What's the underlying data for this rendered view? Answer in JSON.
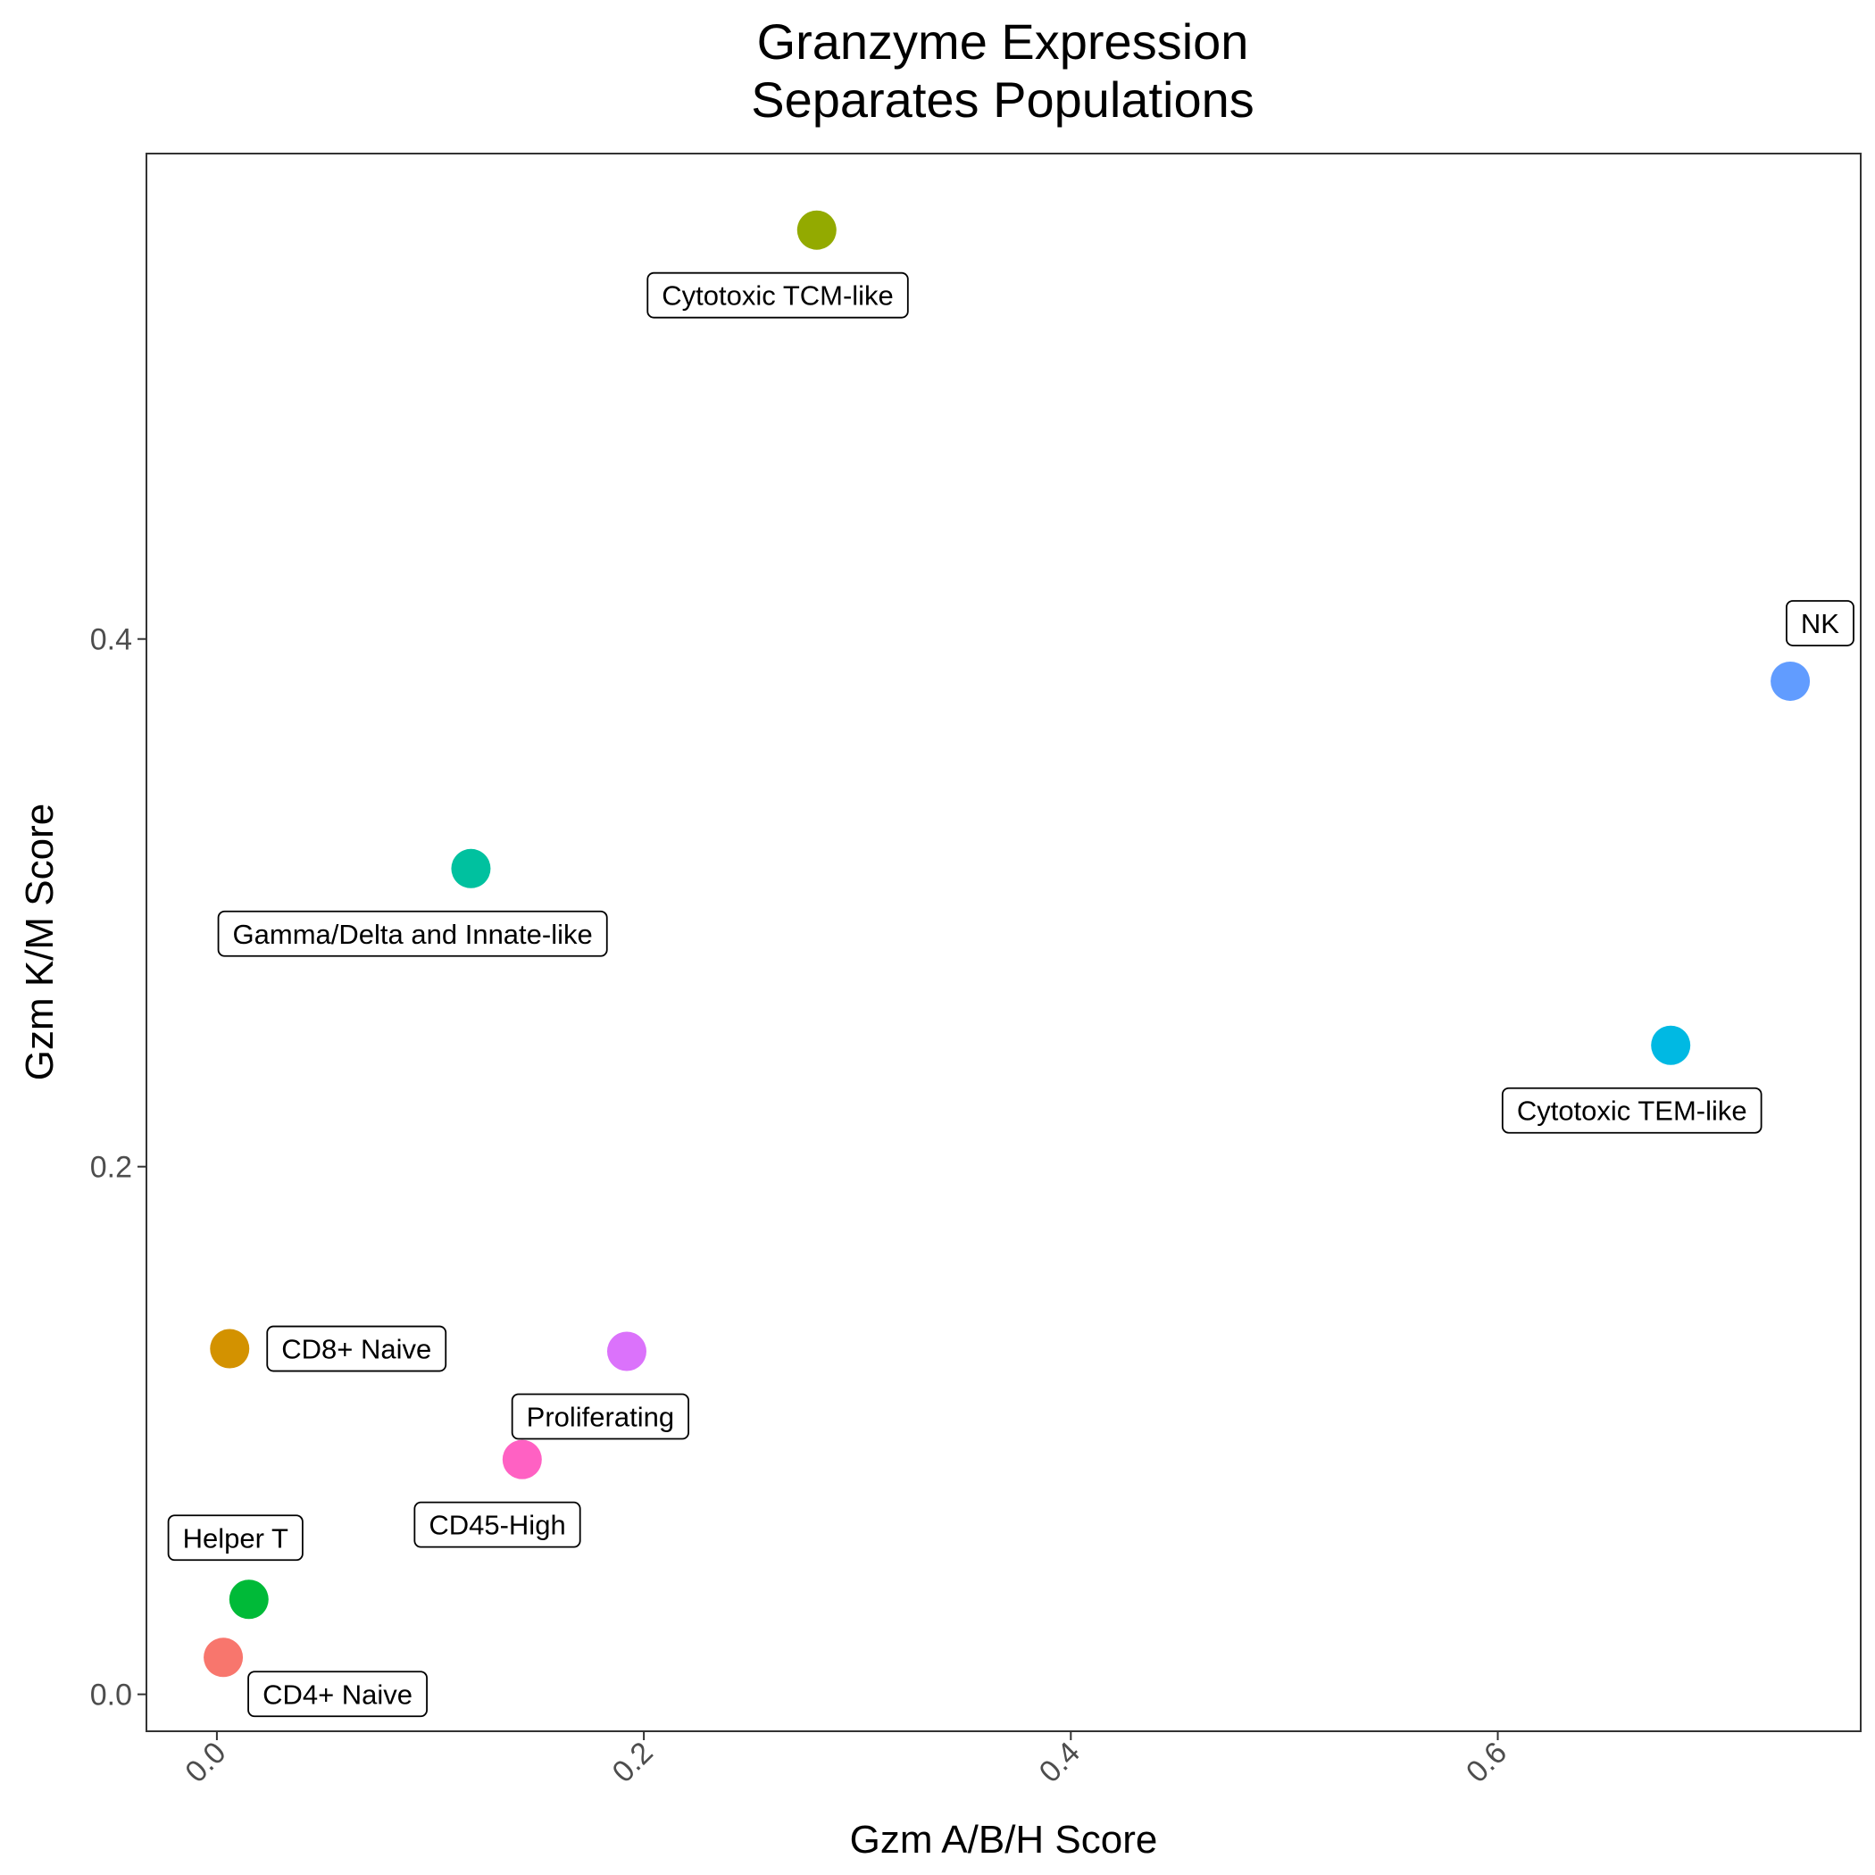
{
  "chart_data": {
    "type": "scatter",
    "title_lines": [
      "Granzyme Expression",
      "Separates Populations"
    ],
    "xlabel": "Gzm A/B/H Score",
    "ylabel": "Gzm K/M Score",
    "xlim": [
      -0.033,
      0.77
    ],
    "ylim": [
      -0.014,
      0.584
    ],
    "xticks": [
      0.0,
      0.2,
      0.4,
      0.6
    ],
    "xtick_labels": [
      "0.0",
      "0.2",
      "0.4",
      "0.6"
    ],
    "yticks": [
      0.0,
      0.2,
      0.4
    ],
    "ytick_labels": [
      "0.0",
      "0.2",
      "0.4"
    ],
    "grid": false,
    "legend": "none",
    "points": [
      {
        "label": "CD4+ Naive",
        "x": 0.003,
        "y": 0.014,
        "color": "#F8766D",
        "label_pos": "below-right"
      },
      {
        "label": "Helper T",
        "x": 0.015,
        "y": 0.036,
        "color": "#00BA38",
        "label_pos": "above"
      },
      {
        "label": "CD8+ Naive",
        "x": 0.006,
        "y": 0.131,
        "color": "#D39200",
        "label_pos": "right"
      },
      {
        "label": "CD45-High",
        "x": 0.143,
        "y": 0.089,
        "color": "#FF61C3",
        "label_pos": "below"
      },
      {
        "label": "Proliferating",
        "x": 0.192,
        "y": 0.13,
        "color": "#DB72FB",
        "label_pos": "below"
      },
      {
        "label": "Gamma/Delta and Innate-like",
        "x": 0.119,
        "y": 0.313,
        "color": "#00C19F",
        "label_pos": "below"
      },
      {
        "label": "Cytotoxic TCM-like",
        "x": 0.281,
        "y": 0.555,
        "color": "#93AA00",
        "label_pos": "below"
      },
      {
        "label": "Cytotoxic TEM-like",
        "x": 0.681,
        "y": 0.246,
        "color": "#00B9E3",
        "label_pos": "below"
      },
      {
        "label": "NK",
        "x": 0.737,
        "y": 0.384,
        "color": "#619CFF",
        "label_pos": "above-right"
      }
    ]
  }
}
